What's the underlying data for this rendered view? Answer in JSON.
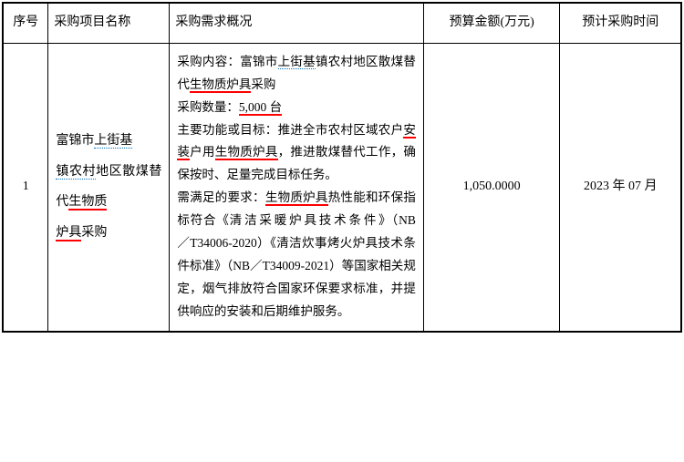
{
  "table": {
    "headers": {
      "seq": "序号",
      "name": "采购项目名称",
      "desc": "采购需求概况",
      "budget": "预算金额(万元)",
      "time": "预计采购时间"
    },
    "row1": {
      "seq": "1",
      "name": {
        "part1": "富锦市",
        "part2_blue": "上街基",
        "part3_blue": "镇农村",
        "part4": "地区散煤替代",
        "part5_red": "生物质",
        "part6_red": "炉具",
        "part7": "采购"
      },
      "desc": {
        "line1_a": "采购内容：富锦市",
        "line1_b_blue": "上街基",
        "line1_c": "镇农村地区散煤替代",
        "line1_d_red": "生物质炉具",
        "line1_e": "采购",
        "line2_a": "采购数量：",
        "line2_b_red": "5,000 台",
        "line3_a": "主要功能或目标：推进全市农村区域农户",
        "line3_b_red": "安装",
        "line3_c": "户用",
        "line3_d_red": "生物质炉具",
        "line3_e": "，推进散煤替代工作，确保按时、足量完成目标任务。",
        "line4_a": "需满足的要求：",
        "line4_b_red": "生物质炉具",
        "line4_c": "热性能和环保指标符合《",
        "line4_d_spaced": "清洁采暖炉具技术条件",
        "line4_e": "》（NB／T34006-2020）《清洁炊事烤火炉具技术条件标准》（NB／T34009-2021）等国家相关规定，烟气排放符合国家环保要求标准，并提供响应的安装和后期维护服务。"
      },
      "budget": "1,050.0000",
      "time": "2023 年 07 月"
    }
  }
}
